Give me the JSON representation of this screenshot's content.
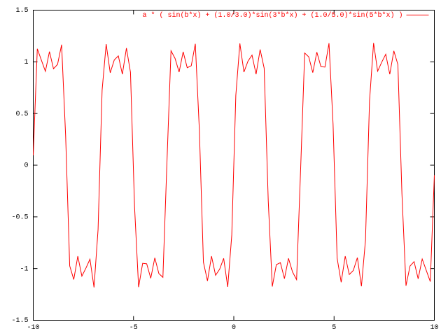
{
  "chart_data": {
    "type": "line",
    "x": [
      -10,
      -9.798,
      -9.596,
      -9.394,
      -9.192,
      -8.99,
      -8.788,
      -8.586,
      -8.384,
      -8.182,
      -7.98,
      -7.778,
      -7.576,
      -7.374,
      -7.172,
      -6.97,
      -6.768,
      -6.566,
      -6.364,
      -6.162,
      -5.96,
      -5.758,
      -5.556,
      -5.354,
      -5.152,
      -4.949,
      -4.747,
      -4.545,
      -4.343,
      -4.141,
      -3.939,
      -3.737,
      -3.535,
      -3.333,
      -3.131,
      -2.929,
      -2.727,
      -2.525,
      -2.323,
      -2.121,
      -1.919,
      -1.717,
      -1.515,
      -1.313,
      -1.111,
      -0.909,
      -0.707,
      -0.505,
      -0.303,
      -0.101,
      0.101,
      0.303,
      0.505,
      0.707,
      0.909,
      1.111,
      1.313,
      1.515,
      1.717,
      1.919,
      2.121,
      2.323,
      2.525,
      2.727,
      2.929,
      3.131,
      3.333,
      3.535,
      3.737,
      3.939,
      4.141,
      4.343,
      4.545,
      4.747,
      4.949,
      5.152,
      5.354,
      5.556,
      5.758,
      5.96,
      6.162,
      6.364,
      6.566,
      6.768,
      6.97,
      7.172,
      7.374,
      7.576,
      7.778,
      7.98,
      8.182,
      8.384,
      8.586,
      8.788,
      8.99,
      9.192,
      9.394,
      9.596,
      9.798,
      10
    ],
    "series": [
      {
        "name": "a * ( sin(b*x) + (1.0/3.0)*sin(3*b*x) + (1.0/5.0)*sin(5*b*x) )",
        "color": "#ff0000",
        "values": [
          0.097,
          1.126,
          1.017,
          0.908,
          1.099,
          0.933,
          0.975,
          1.166,
          0.278,
          -0.974,
          -1.106,
          -0.88,
          -1.073,
          -0.996,
          -0.909,
          -1.182,
          -0.622,
          0.726,
          1.171,
          0.894,
          1.018,
          1.057,
          0.88,
          1.133,
          0.899,
          -0.401,
          -1.18,
          -0.949,
          -0.954,
          -1.094,
          -0.896,
          -1.048,
          -1.085,
          0.032,
          1.107,
          1.033,
          0.901,
          1.097,
          0.943,
          0.962,
          1.174,
          0.341,
          -0.938,
          -1.119,
          -0.88,
          -1.065,
          -1.007,
          -0.901,
          -1.178,
          -0.676,
          0.676,
          1.178,
          0.901,
          1.007,
          1.065,
          0.88,
          1.119,
          0.938,
          -0.341,
          -1.174,
          -0.962,
          -0.943,
          -1.097,
          -0.901,
          -1.033,
          -1.107,
          -0.032,
          1.085,
          1.048,
          0.896,
          1.094,
          0.954,
          0.949,
          1.18,
          0.401,
          -0.899,
          -1.133,
          -0.88,
          -1.057,
          -1.018,
          -0.894,
          -1.171,
          -0.726,
          0.622,
          1.182,
          0.909,
          0.996,
          1.073,
          0.88,
          1.106,
          0.974,
          -0.278,
          -1.166,
          -0.975,
          -0.933,
          -1.099,
          -0.908,
          -1.017,
          -1.126,
          -0.097
        ]
      }
    ],
    "xlim": [
      -10,
      10
    ],
    "xticks": [
      -10,
      -5,
      0,
      5,
      10
    ],
    "ylim": [
      -1.5,
      1.5
    ],
    "yticks": [
      -1.5,
      -1,
      -0.5,
      0,
      0.5,
      1,
      1.5
    ],
    "grid": false,
    "legend": "top-right"
  }
}
